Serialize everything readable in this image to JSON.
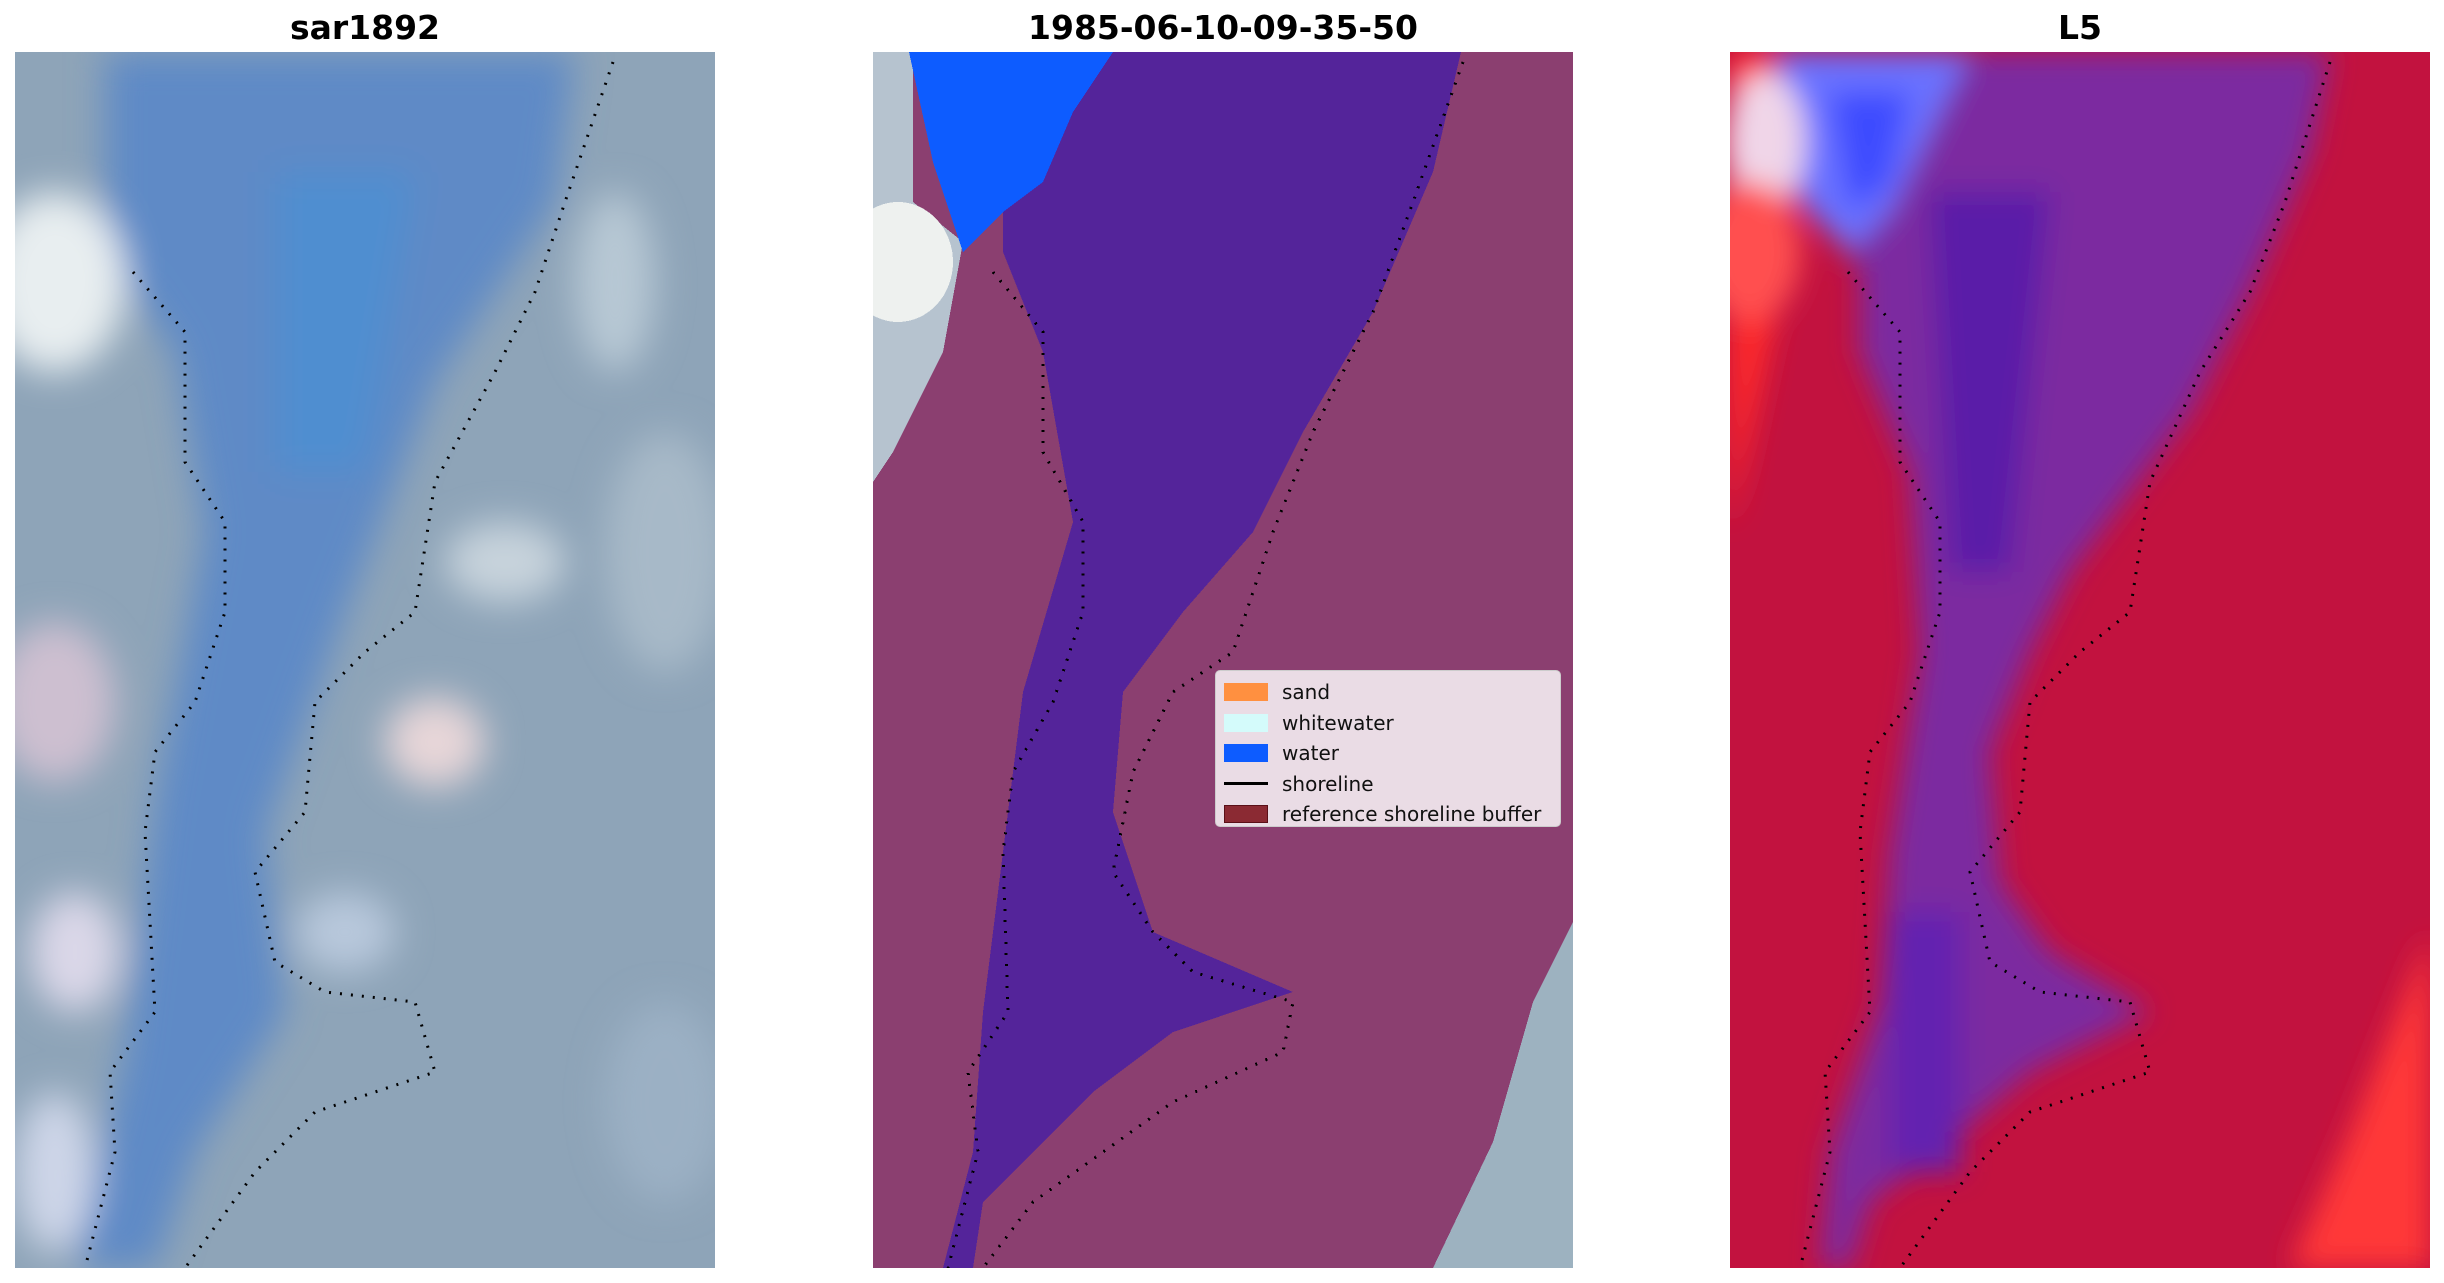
{
  "panels": [
    {
      "title": "sar1892"
    },
    {
      "title": "1985-06-10-09-35-50"
    },
    {
      "title": "L5"
    }
  ],
  "legend": {
    "items": [
      {
        "label": "sand",
        "color": "#ff9040"
      },
      {
        "label": "whitewater",
        "color": "#d4fbfb"
      },
      {
        "label": "water",
        "color": "#0d5cff"
      },
      {
        "label": "shoreline",
        "color": "#000000"
      },
      {
        "label": "reference shoreline buffer",
        "color": "#8b2a33"
      }
    ]
  },
  "colors": {
    "rgb_water": "#5f8cc4",
    "rgb_land": "#8aa2b6",
    "class_water_band": "#54249a",
    "class_land_overlay": "#8d3f72",
    "index_positive": "#c2123f",
    "index_negative": "#6f22a8",
    "index_bright_negative": "#6a72ff"
  }
}
